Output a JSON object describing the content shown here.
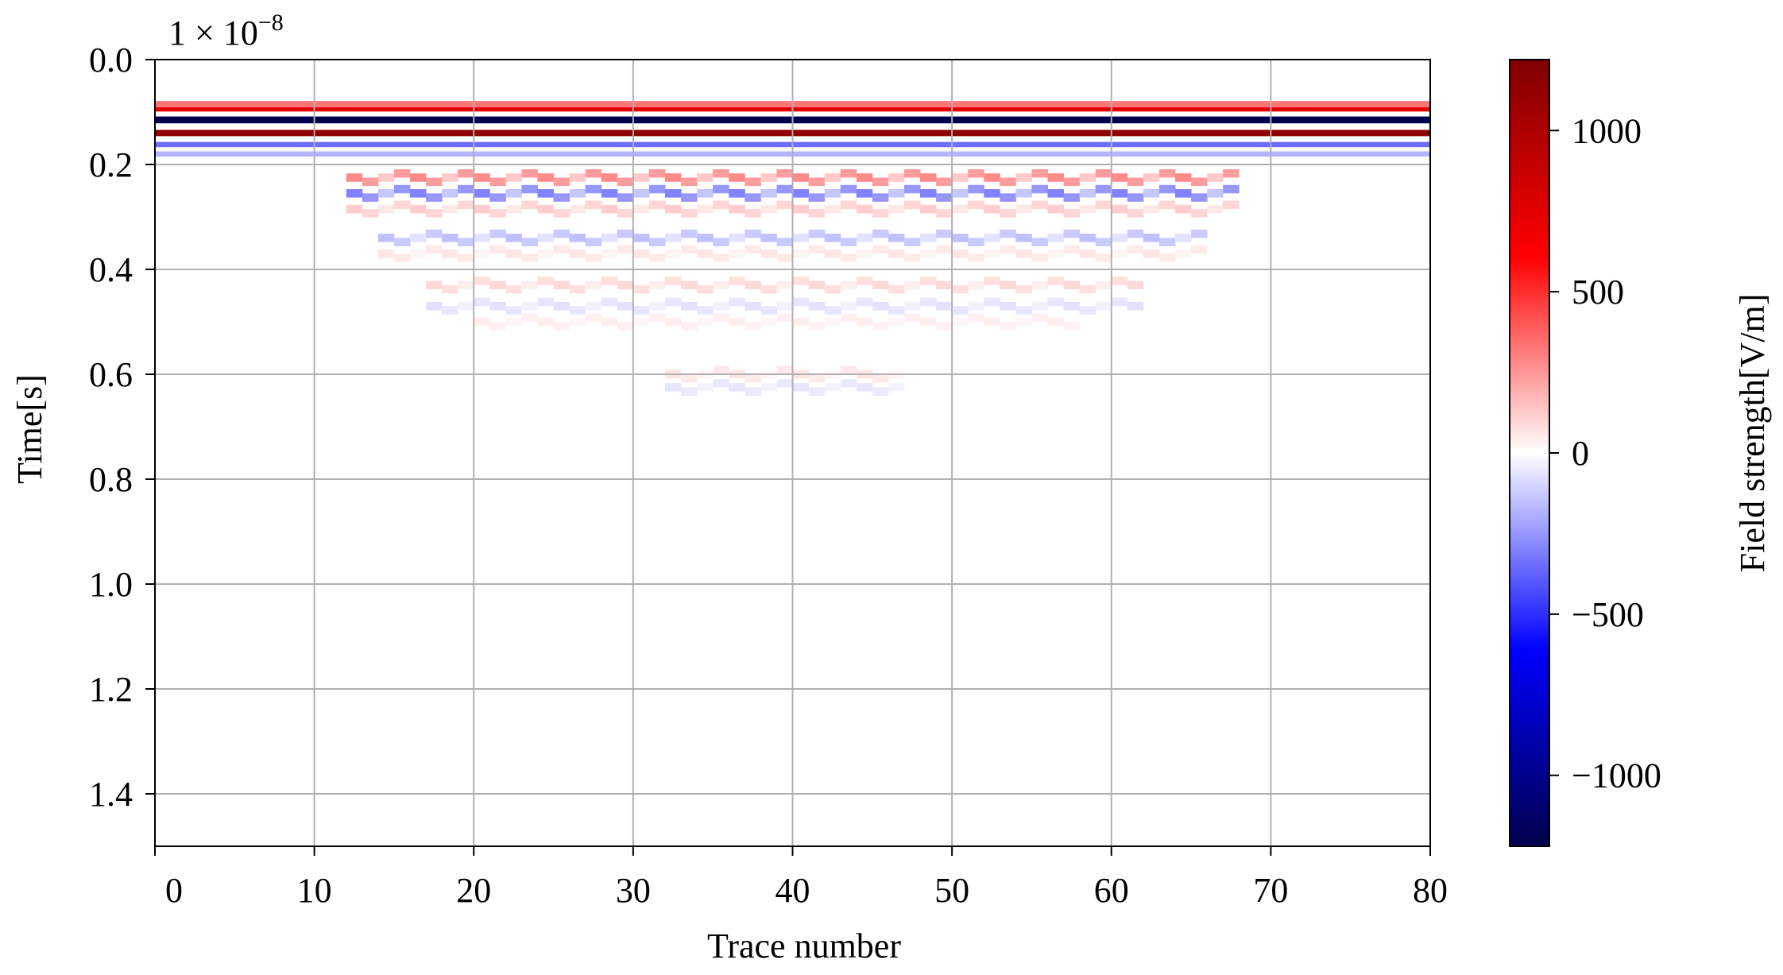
{
  "chart_data": {
    "type": "heatmap",
    "title": "",
    "xlabel": "Trace number",
    "ylabel": "Time[s]",
    "y_offset_text": "1 × 10",
    "y_offset_exponent": "−8",
    "xlim": [
      0,
      80
    ],
    "ylim": [
      1.5,
      0.0
    ],
    "x_ticks": [
      0,
      10,
      20,
      30,
      40,
      50,
      60,
      70,
      80
    ],
    "x_tick_labels": [
      "0",
      "10",
      "20",
      "30",
      "40",
      "50",
      "60",
      "70",
      "80"
    ],
    "y_ticks": [
      0.0,
      0.2,
      0.4,
      0.6,
      0.8,
      1.0,
      1.2,
      1.4
    ],
    "y_tick_labels": [
      "0.0",
      "0.2",
      "0.4",
      "0.6",
      "0.8",
      "1.0",
      "1.2",
      "1.4"
    ],
    "grid": true,
    "colormap": "seismic",
    "colors": {
      "min": "#00004c",
      "negative": "#0000ff",
      "zero": "#ffffff",
      "positive": "#ff0000",
      "max": "#7f0000"
    },
    "colorbar": {
      "label": "Field strength[V/m]",
      "range": [
        -1220,
        1220
      ],
      "ticks": [
        1000,
        500,
        0,
        -500,
        -1000
      ],
      "tick_labels": [
        "1000",
        "500",
        "0",
        "−500",
        "−1000"
      ]
    },
    "bands": [
      {
        "time": 0.085,
        "value": 330,
        "width": 0.012,
        "x_range": [
          0,
          80
        ]
      },
      {
        "time": 0.095,
        "value": 750,
        "width": 0.008,
        "x_range": [
          0,
          80
        ]
      },
      {
        "time": 0.115,
        "value": -1220,
        "width": 0.013,
        "x_range": [
          0,
          80
        ]
      },
      {
        "time": 0.14,
        "value": 1150,
        "width": 0.012,
        "x_range": [
          0,
          80
        ]
      },
      {
        "time": 0.162,
        "value": -350,
        "width": 0.01,
        "x_range": [
          0,
          80
        ]
      },
      {
        "time": 0.18,
        "value": -180,
        "width": 0.01,
        "x_range": [
          0,
          80
        ]
      }
    ],
    "scatter_events": [
      {
        "time": 0.225,
        "value": 280,
        "x_range": [
          12,
          68
        ],
        "period": 4
      },
      {
        "time": 0.255,
        "value": -300,
        "x_range": [
          12,
          68
        ],
        "period": 4
      },
      {
        "time": 0.285,
        "value": 120,
        "x_range": [
          12,
          68
        ],
        "period": 4
      },
      {
        "time": 0.34,
        "value": -150,
        "x_range": [
          14,
          66
        ],
        "period": 4
      },
      {
        "time": 0.37,
        "value": 60,
        "x_range": [
          14,
          66
        ],
        "period": 4
      },
      {
        "time": 0.43,
        "value": 90,
        "x_range": [
          17,
          62
        ],
        "period": 4
      },
      {
        "time": 0.47,
        "value": -70,
        "x_range": [
          17,
          62
        ],
        "period": 4
      },
      {
        "time": 0.5,
        "value": 40,
        "x_range": [
          20,
          58
        ],
        "period": 4
      },
      {
        "time": 0.6,
        "value": 60,
        "x_range": [
          32,
          47
        ],
        "period": 4
      },
      {
        "time": 0.625,
        "value": -60,
        "x_range": [
          32,
          47
        ],
        "period": 4
      }
    ]
  }
}
